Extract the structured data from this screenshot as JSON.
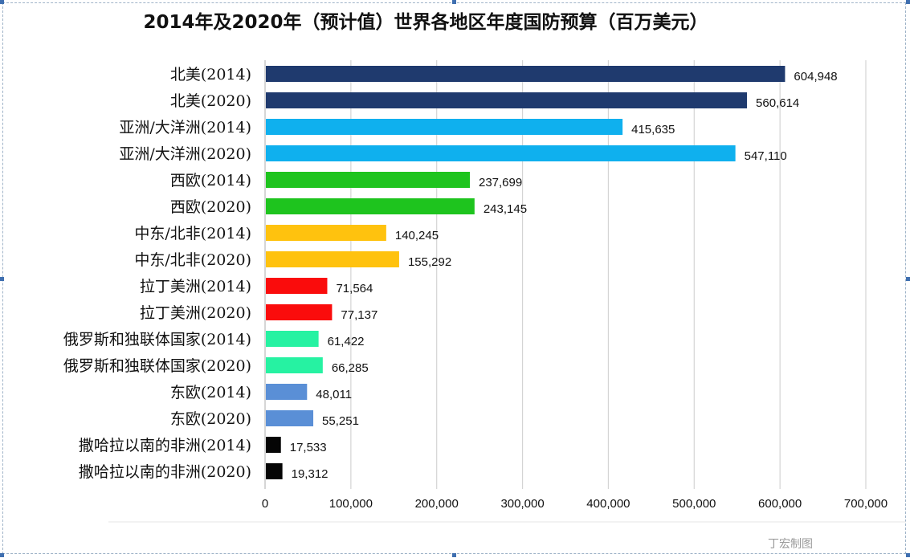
{
  "chart_data": {
    "type": "bar",
    "orientation": "horizontal",
    "title": "2014年及2020年（预计值）世界各地区年度国防预算（百万美元）",
    "categories": [
      "北美(2014)",
      "北美(2020)",
      "亚洲/大洋洲(2014)",
      "亚洲/大洋洲(2020)",
      "西欧(2014)",
      "西欧(2020)",
      "中东/北非(2014)",
      "中东/北非(2020)",
      "拉丁美洲(2014)",
      "拉丁美洲(2020)",
      "俄罗斯和独联体国家(2014)",
      "俄罗斯和独联体国家(2020)",
      "东欧(2014)",
      "东欧(2020)",
      "撒哈拉以南的非洲(2014)",
      "撒哈拉以南的非洲(2020)"
    ],
    "values": [
      604948,
      560614,
      415635,
      547110,
      237699,
      243145,
      140245,
      155292,
      71564,
      77137,
      61422,
      66285,
      48011,
      55251,
      17533,
      19312
    ],
    "value_labels": [
      "604,948",
      "560,614",
      "415,635",
      "547,110",
      "237,699",
      "243,145",
      "140,245",
      "155,292",
      "71,564",
      "77,137",
      "61,422",
      "66,285",
      "48,011",
      "55,251",
      "17,533",
      "19,312"
    ],
    "colors": [
      "#1f3a6e",
      "#1f3a6e",
      "#0fb0ee",
      "#0fb0ee",
      "#1ec41e",
      "#1ec41e",
      "#ffc20e",
      "#ffc20e",
      "#fa0c0c",
      "#fa0c0c",
      "#26f2a2",
      "#26f2a2",
      "#5a8fd6",
      "#5a8fd6",
      "#050505",
      "#050505"
    ],
    "xlim": [
      0,
      700000
    ],
    "xticks": [
      0,
      100000,
      200000,
      300000,
      400000,
      500000,
      600000,
      700000
    ],
    "xtick_labels": [
      "0",
      "100,000",
      "200,000",
      "300,000",
      "400,000",
      "500,000",
      "600,000",
      "700,000"
    ],
    "xlabel": "",
    "ylabel": "",
    "grid": "vertical"
  },
  "watermark": "丁宏制图"
}
